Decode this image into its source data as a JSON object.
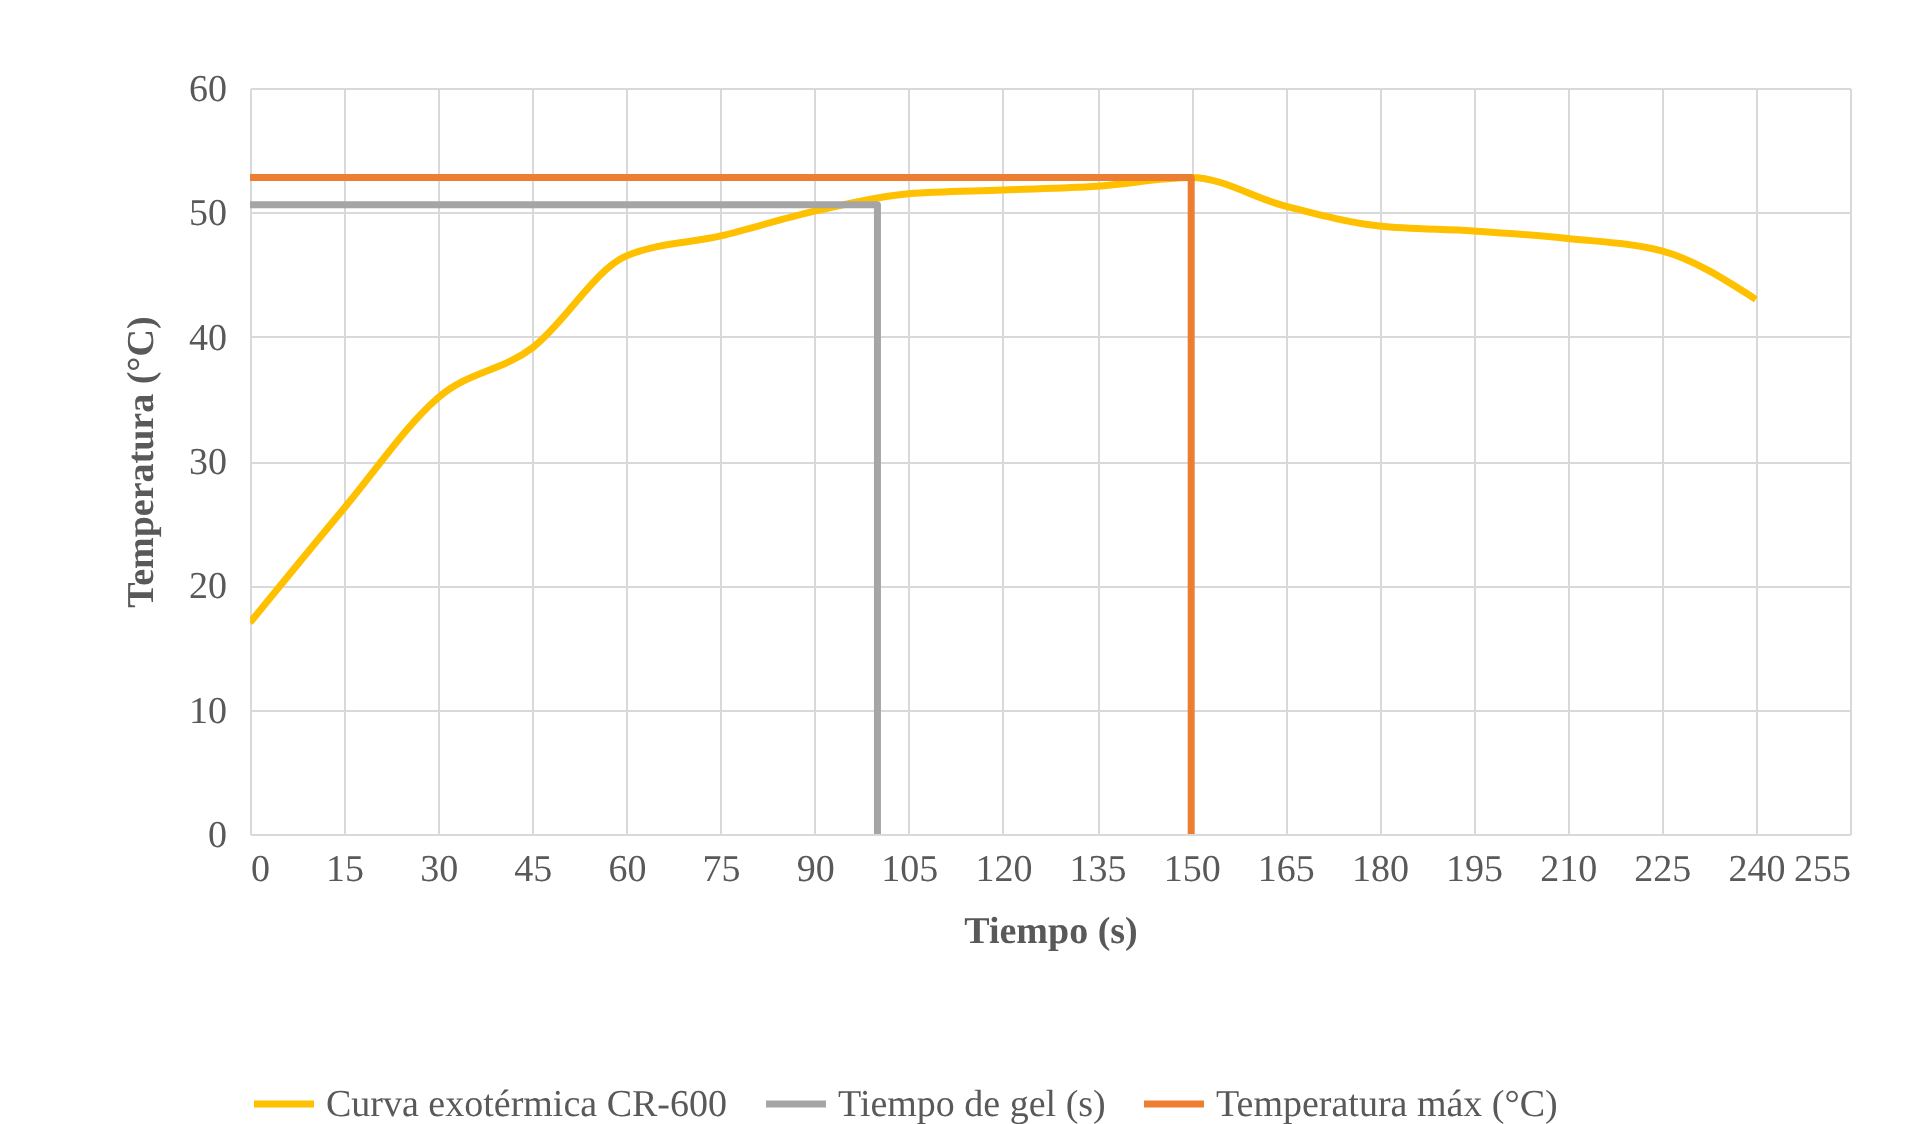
{
  "chart_data": {
    "type": "line",
    "xlabel": "Tiempo (s)",
    "ylabel": "Temperatura (°C)",
    "xlim": [
      0,
      255
    ],
    "xticks": [
      0,
      15,
      30,
      45,
      60,
      75,
      90,
      105,
      120,
      135,
      150,
      165,
      180,
      195,
      210,
      225,
      240,
      255
    ],
    "ylim": [
      0,
      60
    ],
    "yticks": [
      0,
      10,
      20,
      30,
      40,
      50,
      60
    ],
    "grid": true,
    "legend": "bottom",
    "series": [
      {
        "name": "Curva exotérmica CR-600",
        "color": "#ffc000",
        "x": [
          0,
          15,
          30,
          45,
          60,
          75,
          90,
          105,
          120,
          135,
          150,
          165,
          180,
          195,
          210,
          225,
          240
        ],
        "values": [
          17,
          26.2,
          35.1,
          39.1,
          46.5,
          48.1,
          50.1,
          51.5,
          51.8,
          52.1,
          52.8,
          50.5,
          48.9,
          48.5,
          47.9,
          46.9,
          43
        ]
      },
      {
        "name": "Tiempo de gel (s)",
        "color": "#a5a5a5",
        "x": [
          0,
          100,
          100
        ],
        "values": [
          50.6,
          50.6,
          0
        ]
      },
      {
        "name": "Temperatura máx (°C)",
        "color": "#ed7d31",
        "x": [
          0,
          150,
          150
        ],
        "values": [
          52.8,
          52.8,
          0
        ]
      }
    ]
  }
}
